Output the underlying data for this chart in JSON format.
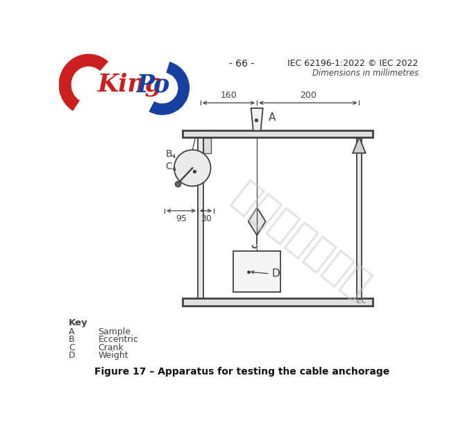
{
  "page_number": "- 66 -",
  "standard": "IEC 62196-1:2022 © IEC 2022",
  "dim_note": "Dimensions in millimetres",
  "figure_caption": "Figure 17 – Apparatus for testing the cable anchorage",
  "key_title": "Key",
  "key_items": [
    [
      "A",
      "Sample"
    ],
    [
      "B",
      "Eccentric"
    ],
    [
      "C",
      "Crank"
    ],
    [
      "D",
      "Weight"
    ]
  ],
  "dim_160": "160",
  "dim_200": "200",
  "dim_95": "95",
  "dim_30": "30",
  "label_A": "A",
  "label_B": "B",
  "label_C": "C",
  "label_D": "D",
  "label_IEC": "IEC",
  "bg_color": "#ffffff",
  "line_color": "#404040",
  "kingpo_red": "#cc2020",
  "kingpo_blue": "#1840a0"
}
